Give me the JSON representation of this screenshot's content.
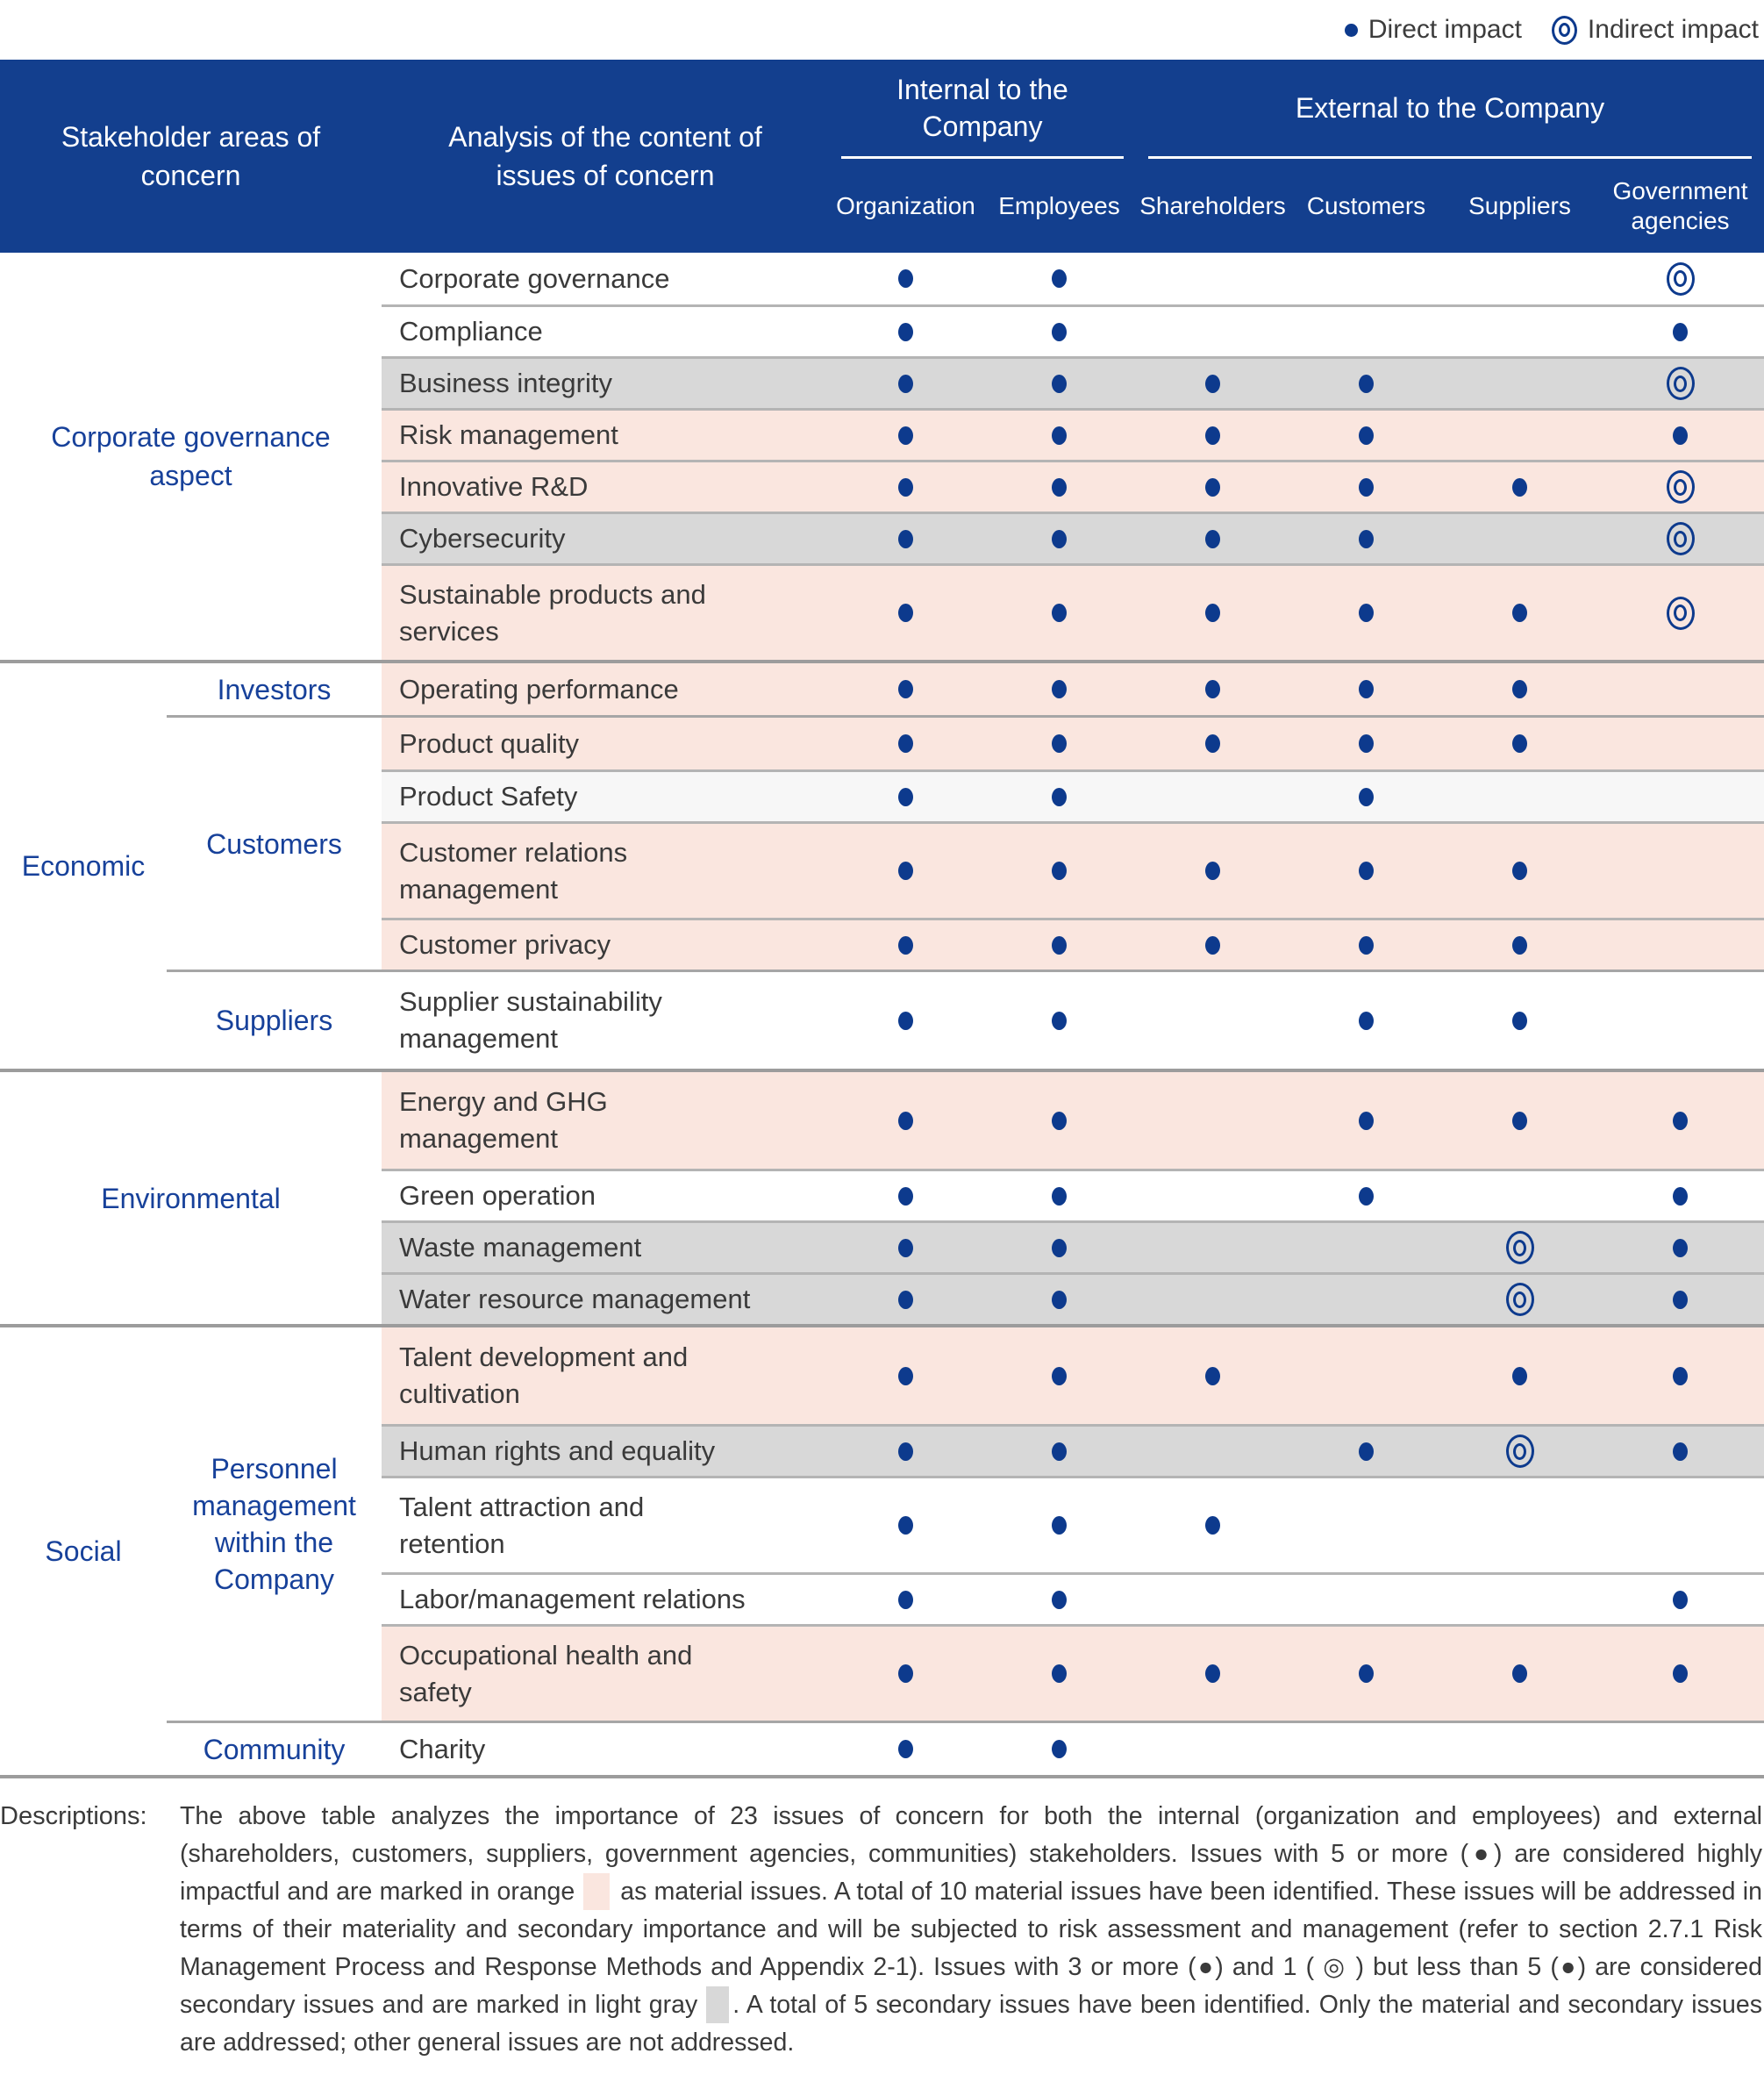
{
  "legend": {
    "direct": "Direct impact",
    "indirect": "Indirect impact"
  },
  "table": {
    "header": {
      "stakeholder_col": "Stakeholder areas of\nconcern",
      "analysis_col": "Analysis of the content of\nissues of concern",
      "internal_group": "Internal to the\nCompany",
      "external_group": "External to the Company",
      "columns": [
        "Organization",
        "Employees",
        "Shareholders",
        "Customers",
        "Suppliers",
        "Government agencies"
      ]
    },
    "sections": [
      {
        "aspect": "Corporate governance\naspect",
        "span_full": true,
        "subgroups": [
          {
            "name": null,
            "rows": [
              {
                "issue": "Corporate governance",
                "bg": "white",
                "impacts": [
                  "direct",
                  "direct",
                  "",
                  "",
                  "",
                  "indirect"
                ]
              },
              {
                "issue": "Compliance",
                "bg": "white",
                "impacts": [
                  "direct",
                  "direct",
                  "",
                  "",
                  "",
                  "direct"
                ]
              },
              {
                "issue": "Business integrity",
                "bg": "secondary",
                "impacts": [
                  "direct",
                  "direct",
                  "direct",
                  "direct",
                  "",
                  "indirect"
                ]
              },
              {
                "issue": "Risk management",
                "bg": "material",
                "impacts": [
                  "direct",
                  "direct",
                  "direct",
                  "direct",
                  "",
                  "direct"
                ]
              },
              {
                "issue": "Innovative R&D",
                "bg": "material",
                "impacts": [
                  "direct",
                  "direct",
                  "direct",
                  "direct",
                  "direct",
                  "indirect"
                ]
              },
              {
                "issue": "Cybersecurity",
                "bg": "secondary",
                "impacts": [
                  "direct",
                  "direct",
                  "direct",
                  "direct",
                  "",
                  "indirect"
                ]
              },
              {
                "issue": "Sustainable products and\nservices",
                "bg": "material",
                "impacts": [
                  "direct",
                  "direct",
                  "direct",
                  "direct",
                  "direct",
                  "indirect"
                ]
              }
            ]
          }
        ]
      },
      {
        "aspect": "Economic",
        "span_full": false,
        "subgroups": [
          {
            "name": "Investors",
            "rows": [
              {
                "issue": "Operating performance",
                "bg": "material",
                "impacts": [
                  "direct",
                  "direct",
                  "direct",
                  "direct",
                  "direct",
                  ""
                ]
              }
            ]
          },
          {
            "name": "Customers",
            "rows": [
              {
                "issue": "Product quality",
                "bg": "material",
                "impacts": [
                  "direct",
                  "direct",
                  "direct",
                  "direct",
                  "direct",
                  ""
                ]
              },
              {
                "issue": "Product Safety",
                "bg": "neutral",
                "impacts": [
                  "direct",
                  "direct",
                  "",
                  "direct",
                  "",
                  ""
                ]
              },
              {
                "issue": "Customer relations\nmanagement",
                "bg": "material",
                "impacts": [
                  "direct",
                  "direct",
                  "direct",
                  "direct",
                  "direct",
                  ""
                ]
              },
              {
                "issue": "Customer privacy",
                "bg": "material",
                "impacts": [
                  "direct",
                  "direct",
                  "direct",
                  "direct",
                  "direct",
                  ""
                ]
              }
            ]
          },
          {
            "name": "Suppliers",
            "rows": [
              {
                "issue": "Supplier sustainability\nmanagement",
                "bg": "white",
                "impacts": [
                  "direct",
                  "direct",
                  "",
                  "direct",
                  "direct",
                  ""
                ]
              }
            ]
          }
        ]
      },
      {
        "aspect": "Environmental",
        "span_full": true,
        "subgroups": [
          {
            "name": null,
            "rows": [
              {
                "issue": "Energy and GHG\nmanagement",
                "bg": "material",
                "impacts": [
                  "direct",
                  "direct",
                  "",
                  "direct",
                  "direct",
                  "direct"
                ]
              },
              {
                "issue": "Green operation",
                "bg": "white",
                "impacts": [
                  "direct",
                  "direct",
                  "",
                  "direct",
                  "",
                  "direct"
                ]
              },
              {
                "issue": "Waste management",
                "bg": "secondary",
                "impacts": [
                  "direct",
                  "direct",
                  "",
                  "",
                  "indirect",
                  "direct"
                ]
              },
              {
                "issue": "Water resource management",
                "bg": "secondary",
                "impacts": [
                  "direct",
                  "direct",
                  "",
                  "",
                  "indirect",
                  "direct"
                ]
              }
            ]
          }
        ]
      },
      {
        "aspect": "Social",
        "span_full": false,
        "subgroups": [
          {
            "name": "Personnel management within the Company",
            "rows": [
              {
                "issue": "Talent development and\ncultivation",
                "bg": "material",
                "impacts": [
                  "direct",
                  "direct",
                  "direct",
                  "",
                  "direct",
                  "direct"
                ]
              },
              {
                "issue": "Human rights and equality",
                "bg": "secondary",
                "impacts": [
                  "direct",
                  "direct",
                  "",
                  "direct",
                  "indirect",
                  "direct"
                ]
              },
              {
                "issue": "Talent attraction and\nretention",
                "bg": "white",
                "impacts": [
                  "direct",
                  "direct",
                  "direct",
                  "",
                  "",
                  ""
                ]
              },
              {
                "issue": "Labor/management relations",
                "bg": "white",
                "impacts": [
                  "direct",
                  "direct",
                  "",
                  "",
                  "",
                  "direct"
                ]
              },
              {
                "issue": "Occupational health and\nsafety",
                "bg": "material",
                "impacts": [
                  "direct",
                  "direct",
                  "direct",
                  "direct",
                  "direct",
                  "direct"
                ]
              }
            ]
          },
          {
            "name": "Community",
            "rows": [
              {
                "issue": "Charity",
                "bg": "white",
                "impacts": [
                  "direct",
                  "direct",
                  "",
                  "",
                  "",
                  ""
                ]
              }
            ]
          }
        ]
      }
    ]
  },
  "descriptions": {
    "label": "Descriptions:",
    "segment_1": "The above table analyzes the importance of 23 issues of concern for both the internal (organization and employees) and external (shareholders, customers, suppliers, government agencies, communities) stakeholders. Issues with 5 or more (●) are considered highly impactful and are marked in orange",
    "segment_2": "as material issues. A total of 10 material issues have been identified. These issues will be addressed in terms of their materiality and secondary importance and will be subjected to risk assessment and management (refer to section 2.7.1 Risk Management Process and Response Methods and Appendix 2-1). Issues with 3 or more (●) and 1 ( ◎ ) but less than 5 (●) are considered secondary issues and are marked in light gray",
    "segment_3": ". A total of 5 secondary issues have been identified. Only the material and secondary issues are addressed; other general issues are not addressed."
  },
  "colors": {
    "header_bg": "#133f8e",
    "material_row_bg": "#fae6df",
    "secondary_row_bg": "#d8d8d8",
    "neutral_row_bg": "#f7f7f7",
    "white_row_bg": "#ffffff",
    "impact_dot": "#0d3a8d",
    "aspect_label_blue": "#17419a"
  }
}
